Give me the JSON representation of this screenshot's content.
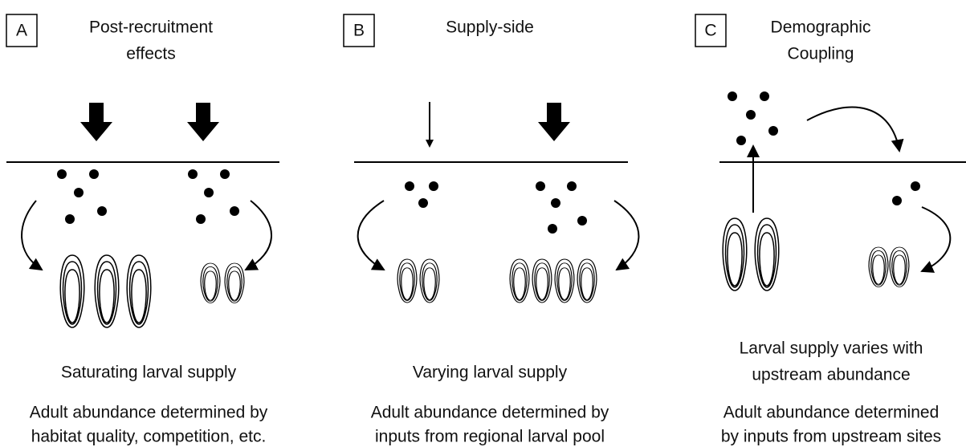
{
  "panels": [
    {
      "letter": "A",
      "title": [
        "Post-recruitment",
        "effects"
      ],
      "caption": [
        "Saturating larval supply"
      ],
      "description": [
        "Adult abundance determined by",
        "habitat quality, competition, etc."
      ]
    },
    {
      "letter": "B",
      "title": [
        "Supply-side"
      ],
      "caption": [
        "Varying larval supply"
      ],
      "description": [
        "Adult abundance determined by",
        "inputs from regional larval pool"
      ]
    },
    {
      "letter": "C",
      "title": [
        "Demographic",
        "Coupling"
      ],
      "caption": [
        "Larval supply varies with",
        "upstream abundance"
      ],
      "description": [
        "Adult abundance determined",
        "by inputs from upstream sites"
      ]
    }
  ]
}
